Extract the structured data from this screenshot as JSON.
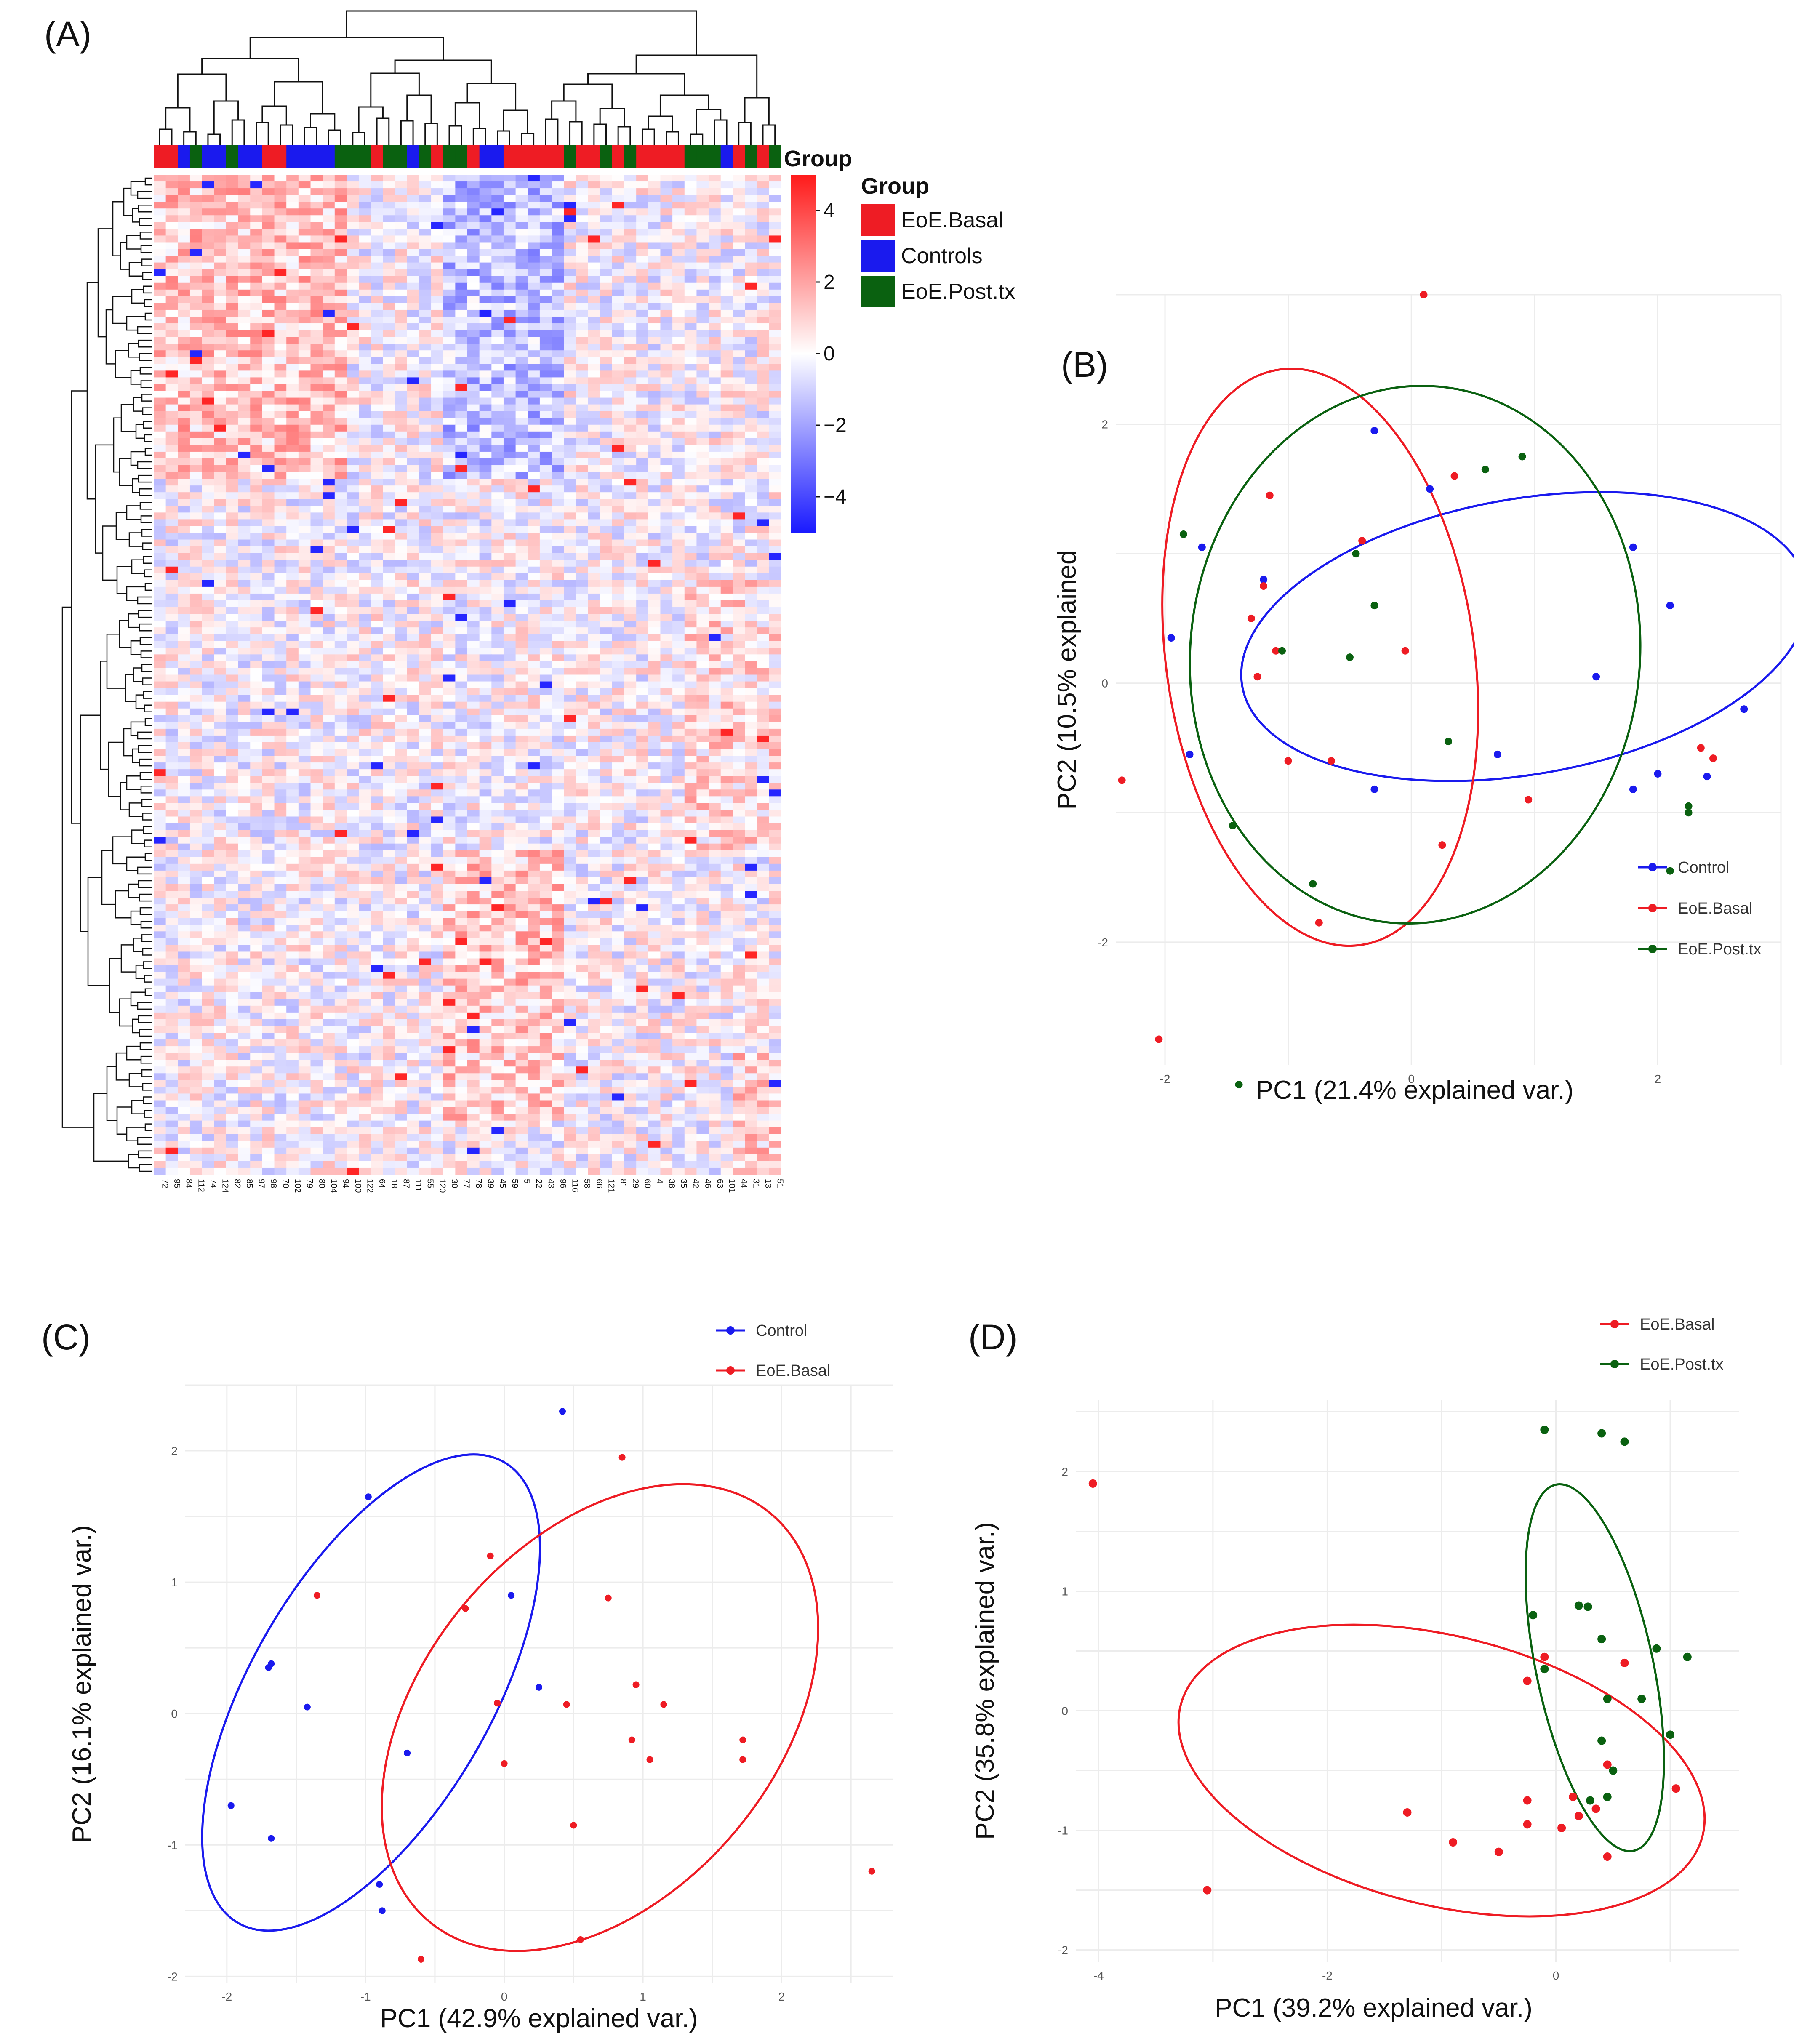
{
  "panels": {
    "A": {
      "label": "(A)"
    },
    "B": {
      "label": "(B)"
    },
    "C": {
      "label": "(C)"
    },
    "D": {
      "label": "(D)"
    }
  },
  "colors": {
    "control": "#1a1aee",
    "basal": "#ee1c24",
    "posttx": "#0a6110"
  },
  "chart_data": [
    {
      "panel": "A",
      "type": "heatmap",
      "annotation_title": "Group",
      "legend_title": "Group",
      "legend": [
        {
          "name": "EoE.Basal",
          "color": "#ee1c24"
        },
        {
          "name": "Controls",
          "color": "#1a1aee"
        },
        {
          "name": "EoE.Post.tx",
          "color": "#0a6110"
        }
      ],
      "colorbar_ticks": [
        "4",
        "2",
        "0",
        "−2",
        "−4"
      ],
      "colorbar_range": [
        -5,
        5
      ],
      "columns": [
        "72",
        "95",
        "84",
        "112",
        "74",
        "124",
        "82",
        "85",
        "97",
        "98",
        "70",
        "102",
        "79",
        "80",
        "104",
        "94",
        "100",
        "122",
        "64",
        "18",
        "87",
        "111",
        "55",
        "120",
        "30",
        "77",
        "78",
        "39",
        "45",
        "59",
        "5",
        "22",
        "43",
        "96",
        "116",
        "58",
        "66",
        "121",
        "81",
        "29",
        "60",
        "4",
        "38",
        "35",
        "42",
        "46",
        "63",
        "101",
        "44",
        "31",
        "13",
        "51"
      ],
      "column_groups": [
        "B",
        "B",
        "C",
        "P",
        "C",
        "C",
        "P",
        "C",
        "C",
        "B",
        "B",
        "C",
        "C",
        "C",
        "C",
        "P",
        "P",
        "P",
        "B",
        "P",
        "P",
        "C",
        "P",
        "B",
        "P",
        "P",
        "B",
        "C",
        "C",
        "B",
        "B",
        "B",
        "B",
        "B",
        "P",
        "B",
        "B",
        "P",
        "B",
        "P",
        "B",
        "B",
        "B",
        "B",
        "P",
        "P",
        "P",
        "C",
        "B",
        "P",
        "B",
        "P"
      ],
      "n_rows": 148
    },
    {
      "panel": "B",
      "type": "scatter",
      "xlabel": "PC1 (21.4% explained var.)",
      "ylabel": "PC2 (10.5% explained",
      "xlim": [
        -2.4,
        3.0
      ],
      "ylim": [
        -2.95,
        3.0
      ],
      "xticks": [
        "-2",
        "0",
        "2"
      ],
      "yticks": [
        "2",
        "0",
        "-2"
      ],
      "legend": [
        "Control",
        "EoE.Basal",
        "EoE.Post.tx"
      ],
      "series": [
        {
          "name": "Control",
          "points": [
            [
              -1.95,
              0.35
            ],
            [
              -1.7,
              1.05
            ],
            [
              -1.2,
              0.8
            ],
            [
              -0.3,
              1.95
            ],
            [
              0.15,
              1.5
            ],
            [
              1.8,
              1.05
            ],
            [
              2.1,
              0.6
            ],
            [
              2.7,
              -0.2
            ],
            [
              1.5,
              0.05
            ],
            [
              0.7,
              -0.55
            ],
            [
              2.0,
              -0.7
            ],
            [
              1.8,
              -0.82
            ],
            [
              2.4,
              -0.72
            ],
            [
              -1.8,
              -0.55
            ],
            [
              -0.3,
              -0.82
            ]
          ]
        },
        {
          "name": "EoE.Basal",
          "points": [
            [
              0.1,
              3.0
            ],
            [
              0.35,
              1.6
            ],
            [
              -1.15,
              1.45
            ],
            [
              -0.4,
              1.1
            ],
            [
              -1.2,
              0.75
            ],
            [
              -1.3,
              0.5
            ],
            [
              -1.1,
              0.25
            ],
            [
              -0.05,
              0.25
            ],
            [
              -1.25,
              0.05
            ],
            [
              2.35,
              -0.5
            ],
            [
              2.45,
              -0.58
            ],
            [
              -2.35,
              -0.75
            ],
            [
              -1.0,
              -0.6
            ],
            [
              -0.65,
              -0.6
            ],
            [
              0.95,
              -0.9
            ],
            [
              0.25,
              -1.25
            ],
            [
              -0.75,
              -1.85
            ],
            [
              -2.05,
              -2.75
            ]
          ]
        },
        {
          "name": "EoE.Post.tx",
          "points": [
            [
              -1.85,
              1.15
            ],
            [
              0.9,
              1.75
            ],
            [
              0.6,
              1.65
            ],
            [
              -0.45,
              1.0
            ],
            [
              -0.3,
              0.6
            ],
            [
              -0.5,
              0.2
            ],
            [
              -1.05,
              0.25
            ],
            [
              0.3,
              -0.45
            ],
            [
              2.25,
              -0.95
            ],
            [
              2.25,
              -1.0
            ],
            [
              2.1,
              -1.45
            ],
            [
              -1.45,
              -1.1
            ],
            [
              -0.8,
              -1.55
            ],
            [
              -1.4,
              -3.1
            ]
          ]
        }
      ],
      "ellipses": [
        {
          "name": "Control",
          "cx": 0.92,
          "cy": 0.36,
          "rx": 2.27,
          "ry": 1.09,
          "angle": -10
        },
        {
          "name": "EoE.Basal",
          "cx": -0.74,
          "cy": 0.2,
          "rx": 2.3,
          "ry": 1.22,
          "angle": -98
        },
        {
          "name": "EoE.Post.tx",
          "cx": 0.03,
          "cy": 0.22,
          "rx": 2.13,
          "ry": 1.78,
          "angle": -85
        }
      ]
    },
    {
      "panel": "C",
      "type": "scatter",
      "xlabel": "PC1 (42.9% explained var.)",
      "ylabel": "PC2 (16.1% explained var.)",
      "xlim": [
        -2.3,
        2.8
      ],
      "ylim": [
        -2.05,
        2.5
      ],
      "xticks": [
        "-2",
        "-1",
        "0",
        "1",
        "2"
      ],
      "yticks": [
        "2",
        "1",
        "0",
        "-1",
        "-2"
      ],
      "legend": [
        "Control",
        "EoE.Basal"
      ],
      "series": [
        {
          "name": "Control",
          "points": [
            [
              0.42,
              2.3
            ],
            [
              -0.98,
              1.65
            ],
            [
              0.05,
              0.9
            ],
            [
              -1.68,
              0.38
            ],
            [
              -1.7,
              0.35
            ],
            [
              -1.42,
              0.05
            ],
            [
              0.25,
              0.2
            ],
            [
              -0.7,
              -0.3
            ],
            [
              -1.97,
              -0.7
            ],
            [
              -1.68,
              -0.95
            ],
            [
              -0.9,
              -1.3
            ],
            [
              -0.88,
              -1.5
            ]
          ]
        },
        {
          "name": "EoE.Basal",
          "points": [
            [
              0.85,
              1.95
            ],
            [
              -0.1,
              1.2
            ],
            [
              -1.35,
              0.9
            ],
            [
              0.75,
              0.88
            ],
            [
              -0.28,
              0.8
            ],
            [
              0.95,
              0.22
            ],
            [
              -0.05,
              0.08
            ],
            [
              0.45,
              0.07
            ],
            [
              1.15,
              0.07
            ],
            [
              0.92,
              -0.2
            ],
            [
              1.72,
              -0.2
            ],
            [
              1.05,
              -0.35
            ],
            [
              1.72,
              -0.35
            ],
            [
              0.0,
              -0.38
            ],
            [
              0.5,
              -0.85
            ],
            [
              2.65,
              -1.2
            ],
            [
              0.55,
              -1.72
            ],
            [
              -0.6,
              -1.87
            ]
          ]
        }
      ],
      "ellipses": [
        {
          "name": "Control",
          "cx": -0.96,
          "cy": 0.16,
          "rx": 1.97,
          "ry": 0.89,
          "angle": -60
        },
        {
          "name": "EoE.Basal",
          "cx": 0.69,
          "cy": -0.03,
          "rx": 1.97,
          "ry": 1.31,
          "angle": -50
        }
      ]
    },
    {
      "panel": "D",
      "type": "scatter",
      "xlabel": "PC1 (39.2% explained var.)",
      "ylabel": "PC2 (35.8% explained var.)",
      "xlim": [
        -4.2,
        1.6
      ],
      "ylim": [
        -2.1,
        2.6
      ],
      "xticks": [
        "-4",
        "-2",
        "0"
      ],
      "yticks": [
        "2",
        "1",
        "0",
        "-1",
        "-2"
      ],
      "legend": [
        "EoE.Basal",
        "EoE.Post.tx"
      ],
      "series": [
        {
          "name": "EoE.Basal",
          "points": [
            [
              -4.05,
              1.9
            ],
            [
              -0.25,
              0.25
            ],
            [
              -0.1,
              0.45
            ],
            [
              0.6,
              0.4
            ],
            [
              0.45,
              -0.45
            ],
            [
              1.05,
              -0.65
            ],
            [
              0.15,
              -0.72
            ],
            [
              -0.25,
              -0.75
            ],
            [
              -1.3,
              -0.85
            ],
            [
              -0.25,
              -0.95
            ],
            [
              0.05,
              -0.98
            ],
            [
              0.2,
              -0.88
            ],
            [
              0.35,
              -0.82
            ],
            [
              -0.9,
              -1.1
            ],
            [
              -0.5,
              -1.18
            ],
            [
              0.45,
              -1.22
            ],
            [
              -3.05,
              -1.5
            ]
          ]
        },
        {
          "name": "EoE.Post.tx",
          "points": [
            [
              -0.1,
              2.35
            ],
            [
              0.4,
              2.32
            ],
            [
              0.6,
              2.25
            ],
            [
              -0.2,
              0.8
            ],
            [
              0.2,
              0.88
            ],
            [
              0.28,
              0.87
            ],
            [
              0.4,
              0.6
            ],
            [
              0.88,
              0.52
            ],
            [
              1.15,
              0.45
            ],
            [
              -0.1,
              0.35
            ],
            [
              0.45,
              0.1
            ],
            [
              0.75,
              0.1
            ],
            [
              0.4,
              -0.25
            ],
            [
              1.0,
              -0.2
            ],
            [
              0.5,
              -0.5
            ],
            [
              0.3,
              -0.75
            ],
            [
              0.45,
              -0.72
            ]
          ]
        }
      ],
      "ellipses": [
        {
          "name": "EoE.Basal",
          "cx": -1.0,
          "cy": -0.5,
          "rx": 2.3,
          "ry": 1.15,
          "angle": 14
        },
        {
          "name": "EoE.Post.tx",
          "cx": 0.34,
          "cy": 0.36,
          "rx": 1.6,
          "ry": 0.5,
          "angle": 78
        }
      ]
    }
  ]
}
